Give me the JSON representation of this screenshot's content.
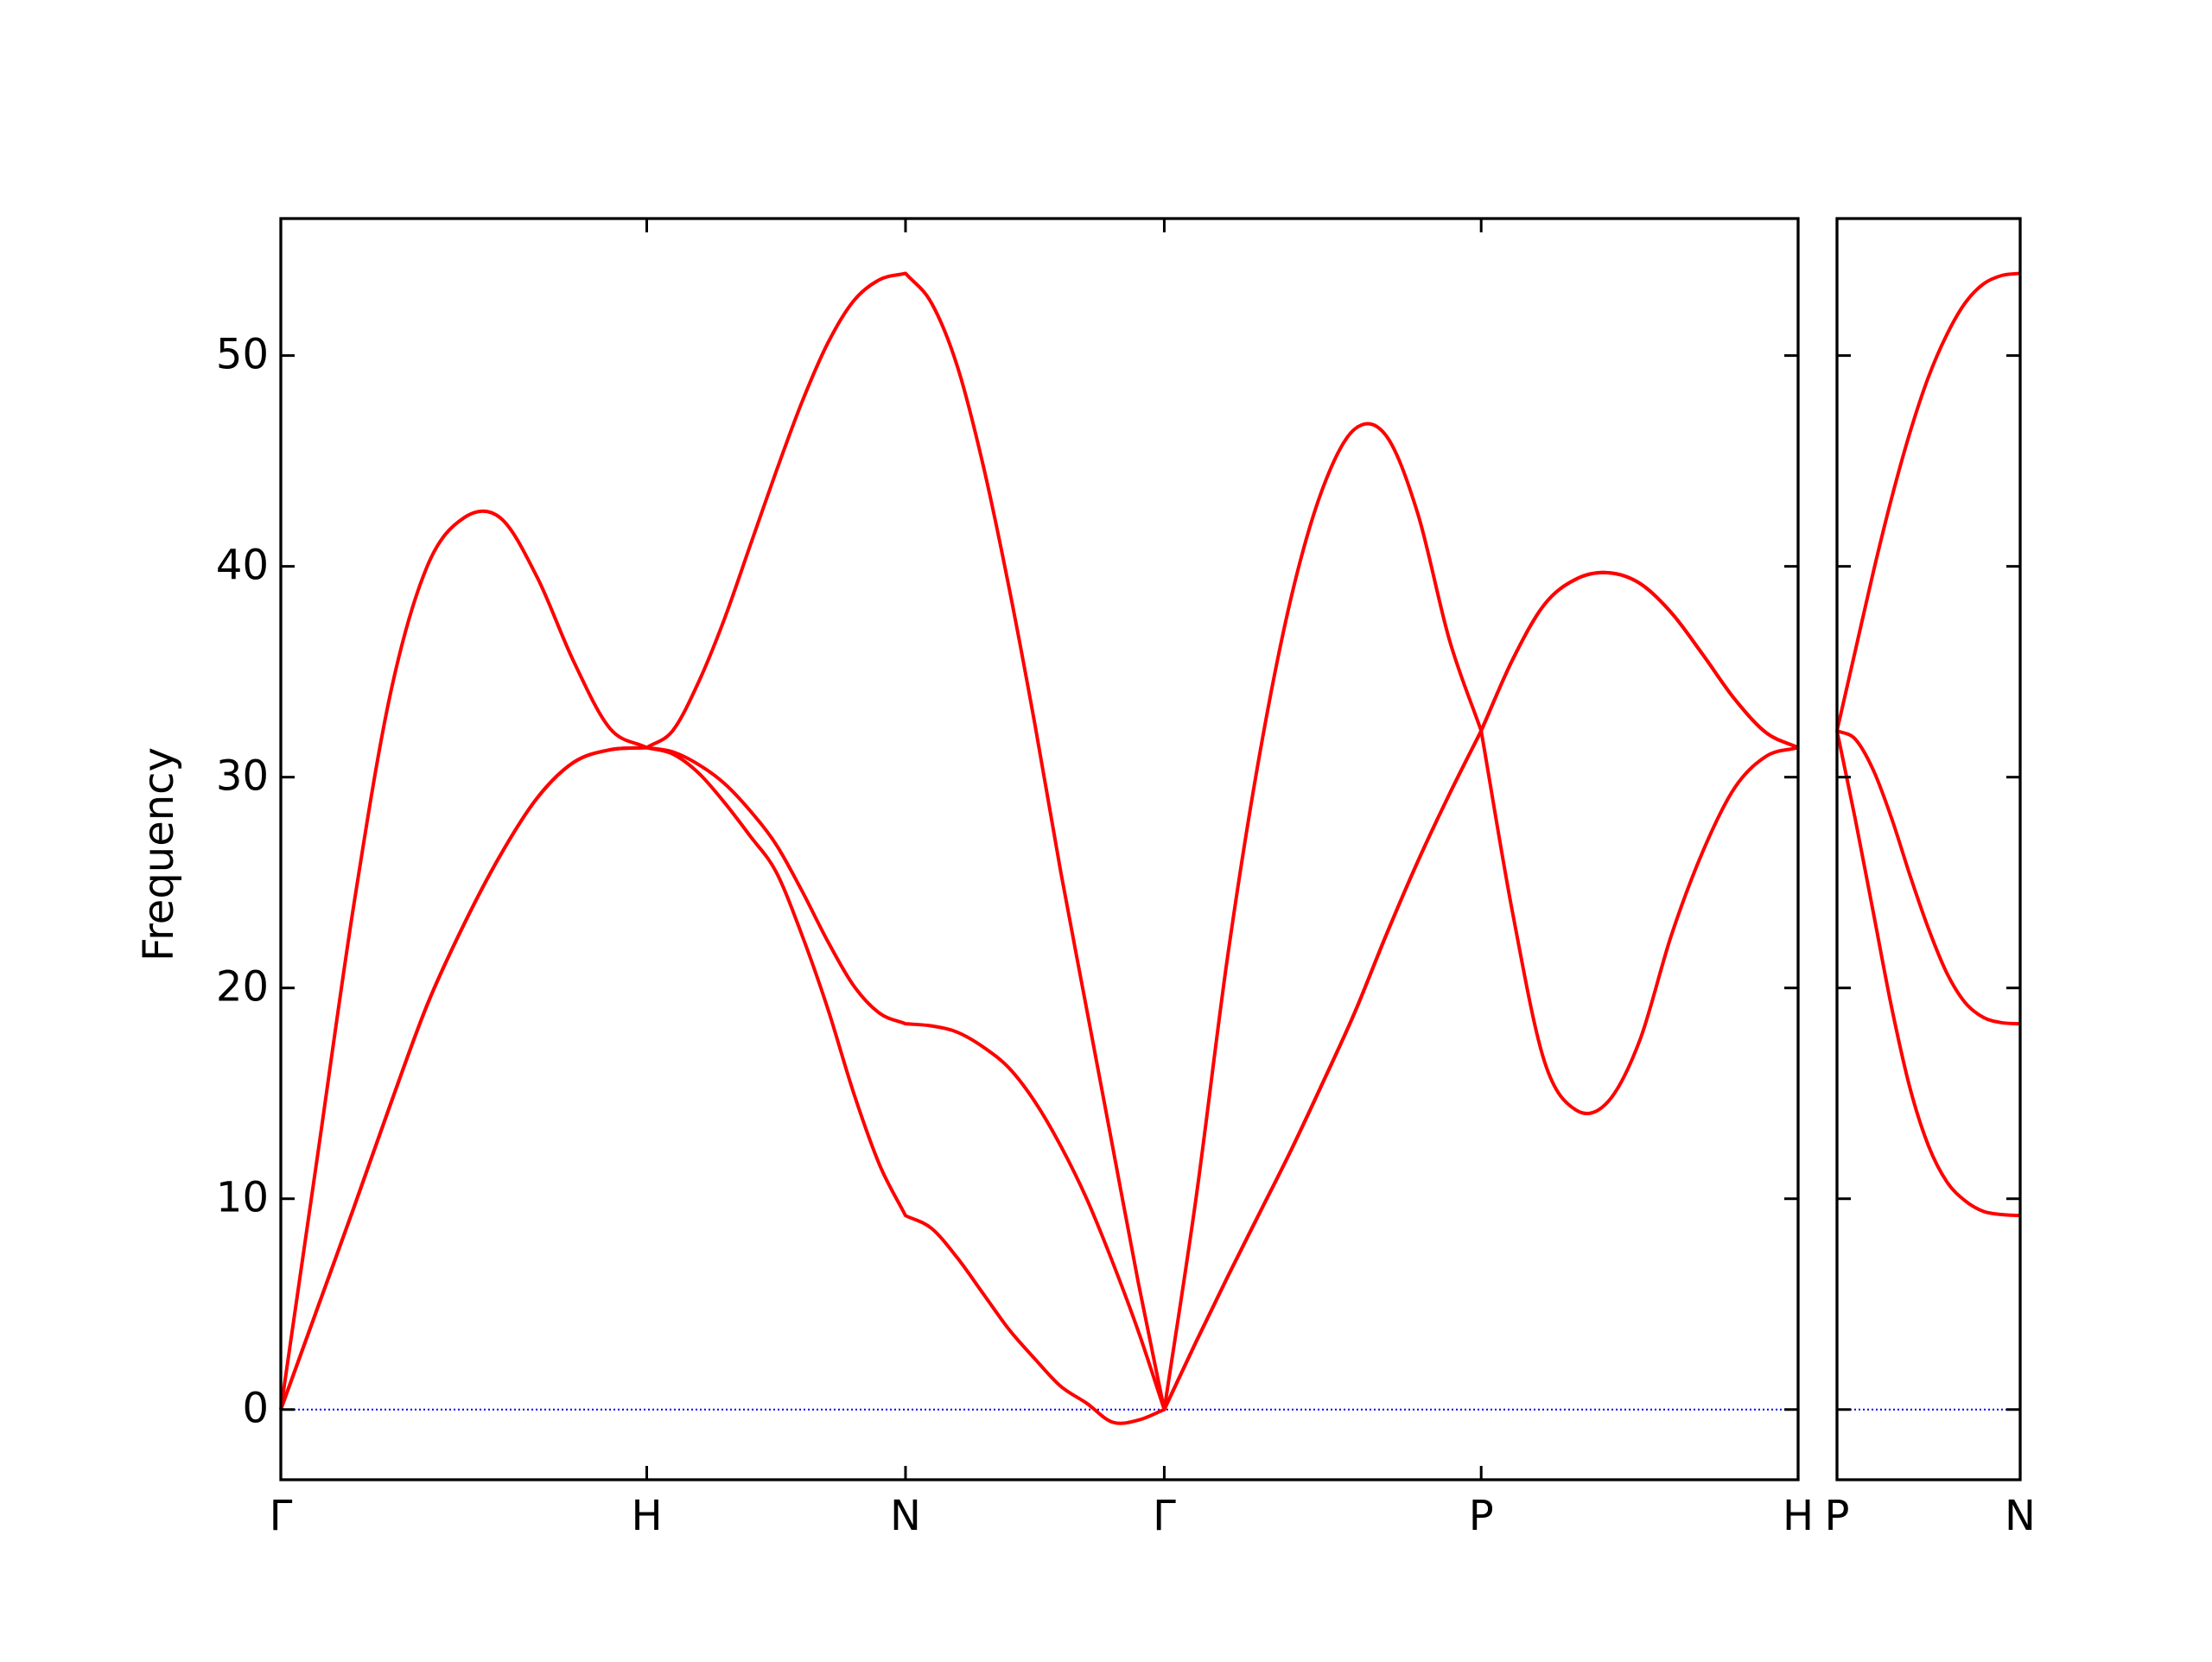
{
  "chart_data": [
    {
      "type": "line",
      "y_label": "Frequency",
      "x": [
        0,
        0.1,
        0.2,
        0.3,
        0.4,
        0.5,
        0.6,
        0.7,
        0.8,
        0.9,
        1,
        1.0707,
        1.1414,
        1.2121,
        1.2828,
        1.3536,
        1.4243,
        1.495,
        1.5657,
        1.6364,
        1.7071,
        1.7778,
        1.8485,
        1.9192,
        1.9899,
        2.0607,
        2.1314,
        2.2021,
        2.2728,
        2.3435,
        2.4142,
        2.5008,
        2.5874,
        2.674,
        2.7606,
        2.8472,
        2.9338,
        3.0204,
        3.107,
        3.1936,
        3.2802,
        3.3668,
        3.4534,
        3.54,
        3.6266,
        3.7133,
        3.7999,
        3.8865,
        3.9731,
        4.0597,
        4.1463
      ],
      "series": [
        {
          "color": "#ff0000",
          "values": [
            0,
            4.8,
            9.6,
            14.5,
            19.2,
            23,
            26.3,
            29,
            30.7,
            31.3,
            31.4,
            31.1,
            30.2,
            28.8,
            27.2,
            25.5,
            22.5,
            19,
            15,
            11.6,
            9.2,
            8.6,
            7.2,
            5.5,
            3.8,
            2.4,
            1.1,
            0.3,
            -0.6,
            -0.5,
            0,
            3.2,
            6.3,
            9.3,
            12.3,
            15.5,
            18.8,
            22.5,
            26,
            29.2,
            32.2,
            35.6,
            38.2,
            39.4,
            39.7,
            39.2,
            37.8,
            35.8,
            33.7,
            32.1,
            31.4
          ]
        },
        {
          "color": "#ff0000",
          "values": [
            0,
            4.8,
            9.6,
            14.5,
            19.2,
            23,
            26.3,
            29,
            30.7,
            31.3,
            31.4,
            31.2,
            30.6,
            29.7,
            28.4,
            26.8,
            24.6,
            22.2,
            20.1,
            18.8,
            18.3,
            18.2,
            17.9,
            17.2,
            16.2,
            14.6,
            12.5,
            10,
            7,
            3.7,
            0,
            3.2,
            6.3,
            9.3,
            12.3,
            15.5,
            18.8,
            22.5,
            26,
            29.2,
            32.2,
            35.6,
            38.2,
            39.4,
            39.7,
            39.2,
            37.8,
            35.8,
            33.7,
            32.1,
            31.4
          ]
        },
        {
          "color": "#ff0000",
          "values": [
            0,
            12,
            24,
            34,
            40,
            42.3,
            42.3,
            39.5,
            35.5,
            32.3,
            31.4,
            32.2,
            34.5,
            37.5,
            41,
            44.5,
            47.8,
            50.6,
            52.6,
            53.6,
            53.9,
            52.5,
            49.5,
            44.8,
            39,
            32.5,
            25.5,
            19,
            12.5,
            6,
            0,
            10,
            21.5,
            31,
            38.5,
            43.7,
            46.5,
            46.2,
            42.5,
            36.5,
            32.2,
            23.5,
            16.5,
            14.2,
            14.6,
            17.5,
            22.5,
            26.5,
            29.5,
            31,
            31.4
          ]
        }
      ],
      "xlim": [
        0,
        4.1463
      ],
      "xticks": [
        {
          "value": 0,
          "label": "Γ"
        },
        {
          "value": 1,
          "label": "H"
        },
        {
          "value": 1.7071,
          "label": "N"
        },
        {
          "value": 2.4142,
          "label": "Γ"
        },
        {
          "value": 3.2802,
          "label": "P"
        },
        {
          "value": 4.1463,
          "label": "H"
        }
      ],
      "ylim": [
        -3.33,
        56.5
      ],
      "yticks": [
        0,
        10,
        20,
        30,
        40,
        50
      ],
      "show_ytick_labels": true,
      "hlines": [
        0
      ],
      "hline_color": "#0000ff"
    },
    {
      "type": "line",
      "x": [
        0,
        0.05,
        0.1,
        0.15,
        0.2,
        0.25,
        0.3,
        0.35,
        0.4,
        0.45,
        0.5
      ],
      "series": [
        {
          "color": "#ff0000",
          "values": [
            32.2,
            28,
            23.5,
            19,
            15.2,
            12.5,
            10.8,
            9.9,
            9.4,
            9.25,
            9.2
          ]
        },
        {
          "color": "#ff0000",
          "values": [
            32.2,
            31.8,
            30.3,
            28,
            25.3,
            22.8,
            20.7,
            19.3,
            18.6,
            18.35,
            18.3
          ]
        },
        {
          "color": "#ff0000",
          "values": [
            32.2,
            36,
            39.8,
            43.3,
            46.4,
            49,
            51,
            52.5,
            53.4,
            53.8,
            53.9
          ]
        }
      ],
      "xlim": [
        0,
        0.5
      ],
      "xticks": [
        {
          "value": 0,
          "label": "P"
        },
        {
          "value": 0.5,
          "label": "N"
        }
      ],
      "ylim": [
        -3.33,
        56.5
      ],
      "yticks": [
        0,
        10,
        20,
        30,
        40,
        50
      ],
      "show_ytick_labels": false,
      "hlines": [
        0
      ],
      "hline_color": "#0000ff"
    }
  ]
}
